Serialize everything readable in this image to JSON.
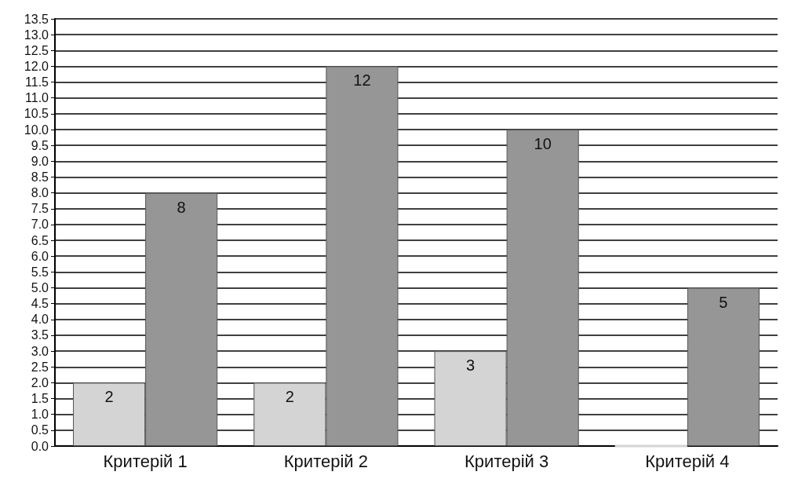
{
  "chart_data": {
    "type": "bar",
    "categories": [
      "Критерій 1",
      "Критерій 2",
      "Критерій 3",
      "Критерій 4"
    ],
    "series": [
      {
        "color": "#d4d4d4",
        "values": [
          2,
          2,
          3,
          0
        ],
        "value_labels": [
          "2",
          "2",
          "3",
          null
        ]
      },
      {
        "color": "#969696",
        "values": [
          8,
          12,
          10,
          5
        ],
        "value_labels": [
          "8",
          "12",
          "10",
          "5"
        ]
      }
    ],
    "ylim": [
      0,
      13.5
    ],
    "yticks": [
      {
        "value": 0,
        "label": "0.0"
      },
      {
        "value": 0.5,
        "label": "0.5"
      },
      {
        "value": 1,
        "label": "1.0"
      },
      {
        "value": 1.5,
        "label": "1.5"
      },
      {
        "value": 2,
        "label": "2.0"
      },
      {
        "value": 2.5,
        "label": "2.5"
      },
      {
        "value": 3,
        "label": "3.0"
      },
      {
        "value": 3.5,
        "label": "3.5"
      },
      {
        "value": 4,
        "label": "4.0"
      },
      {
        "value": 4.5,
        "label": "4.5"
      },
      {
        "value": 5,
        "label": "5.0"
      },
      {
        "value": 5.5,
        "label": "5.5"
      },
      {
        "value": 6,
        "label": "6.0"
      },
      {
        "value": 6.5,
        "label": "6.5"
      },
      {
        "value": 7,
        "label": "7.0"
      },
      {
        "value": 7.5,
        "label": "7.5"
      },
      {
        "value": 8,
        "label": "8.0"
      },
      {
        "value": 8.5,
        "label": "8.5"
      },
      {
        "value": 9,
        "label": "9.0"
      },
      {
        "value": 9.5,
        "label": "9.5"
      },
      {
        "value": 10,
        "label": "10.0"
      },
      {
        "value": 10.5,
        "label": "10.5"
      },
      {
        "value": 11,
        "label": "11.0"
      },
      {
        "value": 11.5,
        "label": "11.5"
      },
      {
        "value": 12,
        "label": "12.0"
      },
      {
        "value": 12.5,
        "label": "12.5"
      },
      {
        "value": 13,
        "label": "13.0"
      },
      {
        "value": 13.5,
        "label": "13.5"
      }
    ],
    "grid": "y"
  }
}
